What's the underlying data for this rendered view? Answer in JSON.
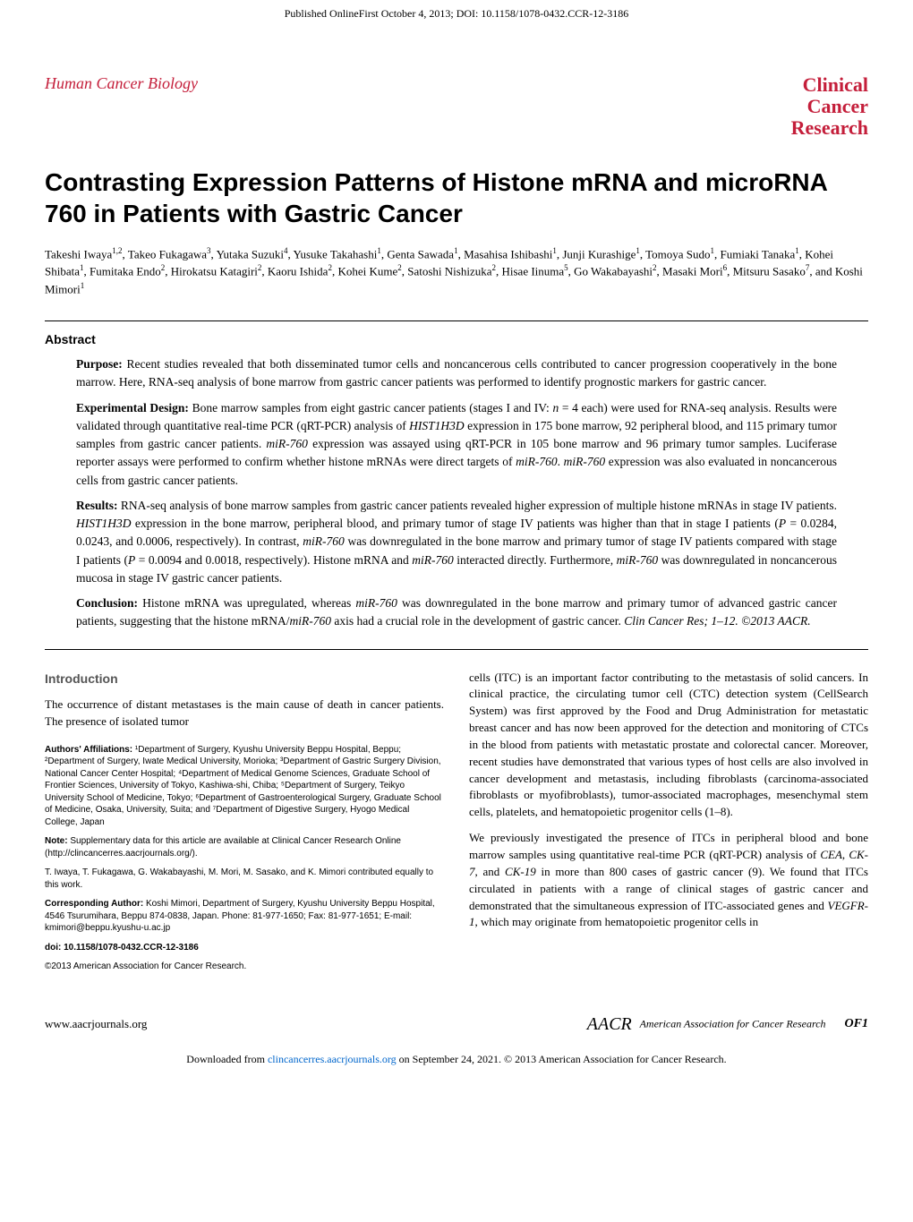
{
  "pubLine": "Published OnlineFirst October 4, 2013; DOI: 10.1158/1078-0432.CCR-12-3186",
  "header": {
    "sectionLabel": "Human Cancer Biology",
    "journal": {
      "line1": "Clinical",
      "line2": "Cancer",
      "line3": "Research"
    }
  },
  "title": "Contrasting Expression Patterns of Histone mRNA and microRNA 760 in Patients with Gastric Cancer",
  "authors": "Takeshi Iwaya^{1,2}, Takeo Fukagawa^{3}, Yutaka Suzuki^{4}, Yusuke Takahashi^{1}, Genta Sawada^{1}, Masahisa Ishibashi^{1}, Junji Kurashige^{1}, Tomoya Sudo^{1}, Fumiaki Tanaka^{1}, Kohei Shibata^{1}, Fumitaka Endo^{2}, Hirokatsu Katagiri^{2}, Kaoru Ishida^{2}, Kohei Kume^{2}, Satoshi Nishizuka^{2}, Hisae Iinuma^{5}, Go Wakabayashi^{2}, Masaki Mori^{6}, Mitsuru Sasako^{7}, and Koshi Mimori^{1}",
  "abstract": {
    "label": "Abstract",
    "purpose": "Recent studies revealed that both disseminated tumor cells and noncancerous cells contributed to cancer progression cooperatively in the bone marrow. Here, RNA-seq analysis of bone marrow from gastric cancer patients was performed to identify prognostic markers for gastric cancer.",
    "experimental": "Bone marrow samples from eight gastric cancer patients (stages I and IV: n = 4 each) were used for RNA-seq analysis. Results were validated through quantitative real-time PCR (qRT-PCR) analysis of HIST1H3D expression in 175 bone marrow, 92 peripheral blood, and 115 primary tumor samples from gastric cancer patients. miR-760 expression was assayed using qRT-PCR in 105 bone marrow and 96 primary tumor samples. Luciferase reporter assays were performed to confirm whether histone mRNAs were direct targets of miR-760. miR-760 expression was also evaluated in noncancerous cells from gastric cancer patients.",
    "results": "RNA-seq analysis of bone marrow samples from gastric cancer patients revealed higher expression of multiple histone mRNAs in stage IV patients. HIST1H3D expression in the bone marrow, peripheral blood, and primary tumor of stage IV patients was higher than that in stage I patients (P = 0.0284, 0.0243, and 0.0006, respectively). In contrast, miR-760 was downregulated in the bone marrow and primary tumor of stage IV patients compared with stage I patients (P = 0.0094 and 0.0018, respectively). Histone mRNA and miR-760 interacted directly. Furthermore, miR-760 was downregulated in noncancerous mucosa in stage IV gastric cancer patients.",
    "conclusion": "Histone mRNA was upregulated, whereas miR-760 was downregulated in the bone marrow and primary tumor of advanced gastric cancer patients, suggesting that the histone mRNA/miR-760 axis had a crucial role in the development of gastric cancer. Clin Cancer Res; 1–12. ©2013 AACR."
  },
  "intro": {
    "heading": "Introduction",
    "p1": "The occurrence of distant metastases is the main cause of death in cancer patients. The presence of isolated tumor",
    "p2": "cells (ITC) is an important factor contributing to the metastasis of solid cancers. In clinical practice, the circulating tumor cell (CTC) detection system (CellSearch System) was first approved by the Food and Drug Administration for metastatic breast cancer and has now been approved for the detection and monitoring of CTCs in the blood from patients with metastatic prostate and colorectal cancer. Moreover, recent studies have demonstrated that various types of host cells are also involved in cancer development and metastasis, including fibroblasts (carcinoma-associated fibroblasts or myofibroblasts), tumor-associated macrophages, mesenchymal stem cells, platelets, and hematopoietic progenitor cells (1–8).",
    "p3": "We previously investigated the presence of ITCs in peripheral blood and bone marrow samples using quantitative real-time PCR (qRT-PCR) analysis of CEA, CK-7, and CK-19 in more than 800 cases of gastric cancer (9). We found that ITCs circulated in patients with a range of clinical stages of gastric cancer and demonstrated that the simultaneous expression of ITC-associated genes and VEGFR-1, which may originate from hematopoietic progenitor cells in"
  },
  "meta": {
    "affiliations": "Authors' Affiliations: ¹Department of Surgery, Kyushu University Beppu Hospital, Beppu; ²Department of Surgery, Iwate Medical University, Morioka; ³Department of Gastric Surgery Division, National Cancer Center Hospital; ⁴Department of Medical Genome Sciences, Graduate School of Frontier Sciences, University of Tokyo, Kashiwa-shi, Chiba; ⁵Department of Surgery, Teikyo University School of Medicine, Tokyo; ⁶Department of Gastroenterological Surgery, Graduate School of Medicine, Osaka, University, Suita; and ⁷Department of Digestive Surgery, Hyogo Medical College, Japan",
    "note": "Note: Supplementary data for this article are available at Clinical Cancer Research Online (http://clincancerres.aacrjournals.org/).",
    "contributed": "T. Iwaya, T. Fukagawa, G. Wakabayashi, M. Mori, M. Sasako, and K. Mimori contributed equally to this work.",
    "corresponding": "Corresponding Author: Koshi Mimori, Department of Surgery, Kyushu University Beppu Hospital, 4546 Tsurumihara, Beppu 874-0838, Japan. Phone: 81-977-1650; Fax: 81-977-1651; E-mail: kmimori@beppu.kyushu-u.ac.jp",
    "doi": "doi: 10.1158/1078-0432.CCR-12-3186",
    "copyright": "©2013 American Association for Cancer Research."
  },
  "footer": {
    "left": "www.aacrjournals.org",
    "right": "American Association for Cancer Research",
    "aacr": "AACR",
    "pageNum": "OF1"
  },
  "download": {
    "text1": "Downloaded from ",
    "link": "clincancerres.aacrjournals.org",
    "text2": " on September 24, 2021. © 2013 American Association for Cancer Research."
  },
  "labels": {
    "purpose": "Purpose: ",
    "experimental": "Experimental Design: ",
    "results": "Results: ",
    "conclusion": "Conclusion: "
  }
}
